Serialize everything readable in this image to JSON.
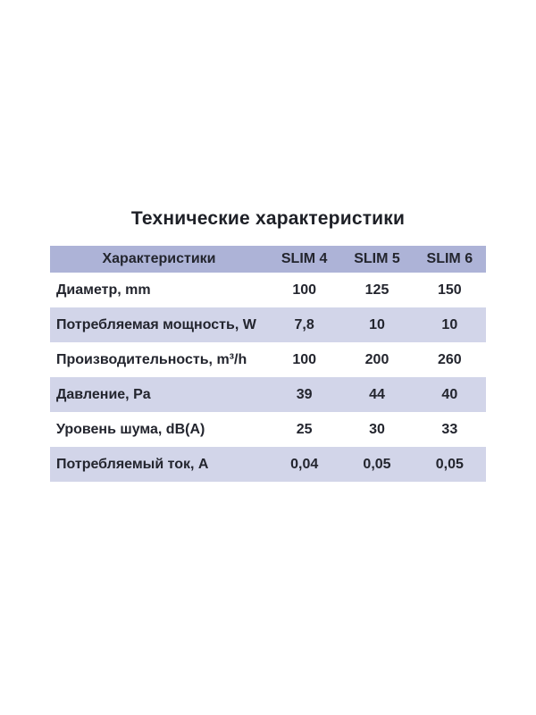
{
  "title": "Технические характеристики",
  "colors": {
    "header_bg": "#adb3d7",
    "stripe_bg": "#d2d5e9",
    "text": "#23252e",
    "page_bg": "#ffffff"
  },
  "chart_data": {
    "type": "table",
    "title": "Технические характеристики",
    "columns": [
      "Характеристики",
      "SLIM 4",
      "SLIM 5",
      "SLIM 6"
    ],
    "rows": [
      [
        "Диаметр, mm",
        "100",
        "125",
        "150"
      ],
      [
        "Потребляемая мощность, W",
        "7,8",
        "10",
        "10"
      ],
      [
        "Производительность, m³/h",
        "100",
        "200",
        "260"
      ],
      [
        "Давление, Pa",
        "39",
        "44",
        "40"
      ],
      [
        "Уровень шума, dB(A)",
        "25",
        "30",
        "33"
      ],
      [
        "Потребляемый ток, A",
        "0,04",
        "0,05",
        "0,05"
      ]
    ]
  }
}
